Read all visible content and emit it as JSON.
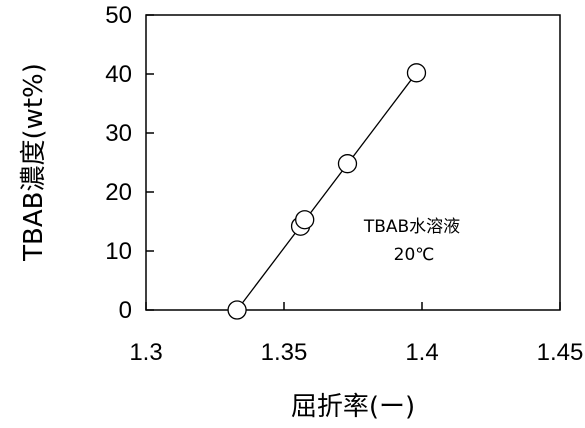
{
  "chart_data": {
    "type": "scatter",
    "xlabel": "屈折率(ー)",
    "ylabel": "TBAB濃度(wt%)",
    "xlim": [
      1.3,
      1.45
    ],
    "ylim": [
      0,
      50
    ],
    "xticks": [
      "1.3",
      "1.35",
      "1.4",
      "1.45"
    ],
    "yticks": [
      "0",
      "10",
      "20",
      "30",
      "40",
      "50"
    ],
    "grid": false,
    "points": [
      {
        "x": 1.333,
        "y": 0
      },
      {
        "x": 1.356,
        "y": 14.2
      },
      {
        "x": 1.3575,
        "y": 15.3
      },
      {
        "x": 1.373,
        "y": 24.8
      },
      {
        "x": 1.398,
        "y": 40.2
      }
    ],
    "fit_line": {
      "x": [
        1.333,
        1.398
      ],
      "y": [
        0,
        40.2
      ]
    },
    "annotation": [
      "TBAB水溶液",
      "20℃"
    ]
  }
}
